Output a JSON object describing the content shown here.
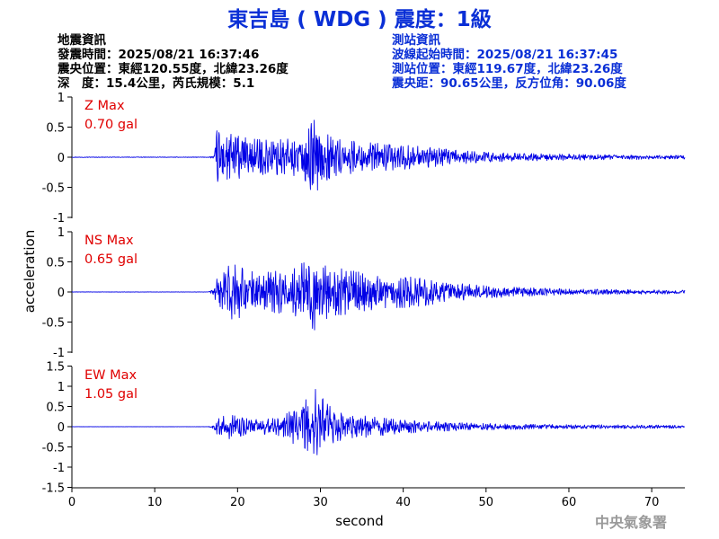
{
  "title": "東吉島 ( WDG ) 震度：1級",
  "colors": {
    "title": "#0a2fd6",
    "trace": "#0000e6",
    "max_label": "#e00000",
    "axis": "#000000",
    "info_left": "#000000",
    "info_right": "#0a2fd6",
    "watermark": "#9a9a9a"
  },
  "quake_info": {
    "heading": "地震資訊",
    "origin_time": "發震時間：2025/08/21 16:37:46",
    "epicenter": "震央位置：東經120.55度，北緯23.26度",
    "depth_magnitude": "深　度：15.4公里，芮氏規模：5.1"
  },
  "station_info": {
    "heading": "測站資訊",
    "wave_start": "波線起始時間：2025/08/21 16:37:45",
    "station_location": "測站位置：東經119.67度，北緯23.26度",
    "distance_azimuth": "震央距：90.65公里，反方位角：90.06度"
  },
  "watermark": "中央氣象署",
  "chart_data": {
    "type": "line",
    "xlabel": "second",
    "ylabel": "acceleration",
    "xlim": [
      0,
      74
    ],
    "x_ticks": [
      0,
      10,
      20,
      30,
      40,
      50,
      60,
      70
    ],
    "x_tick_labels": [
      "0",
      "10",
      "20",
      "30",
      "40",
      "50",
      "60",
      "70"
    ],
    "ylim": [
      -1,
      1
    ],
    "y_ticks": [
      1,
      0.5,
      0,
      -0.5,
      -1
    ],
    "y_tick_labels": [
      "1",
      "0.5",
      "0",
      "-0.5",
      "-1"
    ],
    "bottom_ylim": [
      -1.5,
      1.5
    ],
    "bottom_y_ticks": [
      1.5,
      1,
      0.5,
      0,
      -0.5,
      -1,
      -1.5
    ],
    "bottom_y_tick_labels": [
      "1.5",
      "1",
      "0.5",
      "0",
      "-0.5",
      "-1",
      "-1.5"
    ],
    "grid": false,
    "panels": [
      {
        "component": "Z",
        "max_label": "Z Max",
        "max_value": "0.70 gal",
        "envelope": [
          [
            0,
            0.005
          ],
          [
            16.5,
            0.005
          ],
          [
            17.2,
            0.03
          ],
          [
            17.4,
            0.45
          ],
          [
            18,
            0.38
          ],
          [
            20,
            0.38
          ],
          [
            22,
            0.3
          ],
          [
            24,
            0.28
          ],
          [
            26,
            0.3
          ],
          [
            28,
            0.35
          ],
          [
            29.5,
            0.7
          ],
          [
            30.5,
            0.4
          ],
          [
            32,
            0.3
          ],
          [
            35,
            0.25
          ],
          [
            38,
            0.22
          ],
          [
            40,
            0.2
          ],
          [
            43,
            0.17
          ],
          [
            46,
            0.12
          ],
          [
            50,
            0.08
          ],
          [
            55,
            0.06
          ],
          [
            60,
            0.05
          ],
          [
            65,
            0.04
          ],
          [
            70,
            0.035
          ],
          [
            74,
            0.03
          ]
        ]
      },
      {
        "component": "NS",
        "max_label": "NS Max",
        "max_value": "0.65 gal",
        "envelope": [
          [
            0,
            0.003
          ],
          [
            16.5,
            0.003
          ],
          [
            17.2,
            0.05
          ],
          [
            17.4,
            0.22
          ],
          [
            18,
            0.25
          ],
          [
            19.5,
            0.55
          ],
          [
            21,
            0.35
          ],
          [
            23,
            0.32
          ],
          [
            25,
            0.35
          ],
          [
            27,
            0.4
          ],
          [
            29.5,
            0.65
          ],
          [
            30.5,
            0.45
          ],
          [
            32,
            0.4
          ],
          [
            35,
            0.32
          ],
          [
            38,
            0.26
          ],
          [
            40,
            0.26
          ],
          [
            43,
            0.22
          ],
          [
            46,
            0.15
          ],
          [
            50,
            0.1
          ],
          [
            55,
            0.07
          ],
          [
            60,
            0.05
          ],
          [
            65,
            0.04
          ],
          [
            70,
            0.035
          ],
          [
            74,
            0.03
          ]
        ]
      },
      {
        "component": "EW",
        "max_label": "EW Max",
        "max_value": "1.05 gal",
        "envelope": [
          [
            0,
            0.003
          ],
          [
            16.5,
            0.003
          ],
          [
            17.2,
            0.06
          ],
          [
            17.6,
            0.22
          ],
          [
            19,
            0.3
          ],
          [
            21,
            0.2
          ],
          [
            23,
            0.18
          ],
          [
            25,
            0.22
          ],
          [
            27,
            0.45
          ],
          [
            29,
            0.8
          ],
          [
            29.8,
            1.05
          ],
          [
            30.5,
            0.65
          ],
          [
            32,
            0.35
          ],
          [
            34,
            0.3
          ],
          [
            36,
            0.25
          ],
          [
            39,
            0.18
          ],
          [
            42,
            0.14
          ],
          [
            46,
            0.1
          ],
          [
            50,
            0.08
          ],
          [
            55,
            0.06
          ],
          [
            60,
            0.05
          ],
          [
            65,
            0.045
          ],
          [
            70,
            0.04
          ],
          [
            74,
            0.035
          ]
        ]
      }
    ]
  }
}
